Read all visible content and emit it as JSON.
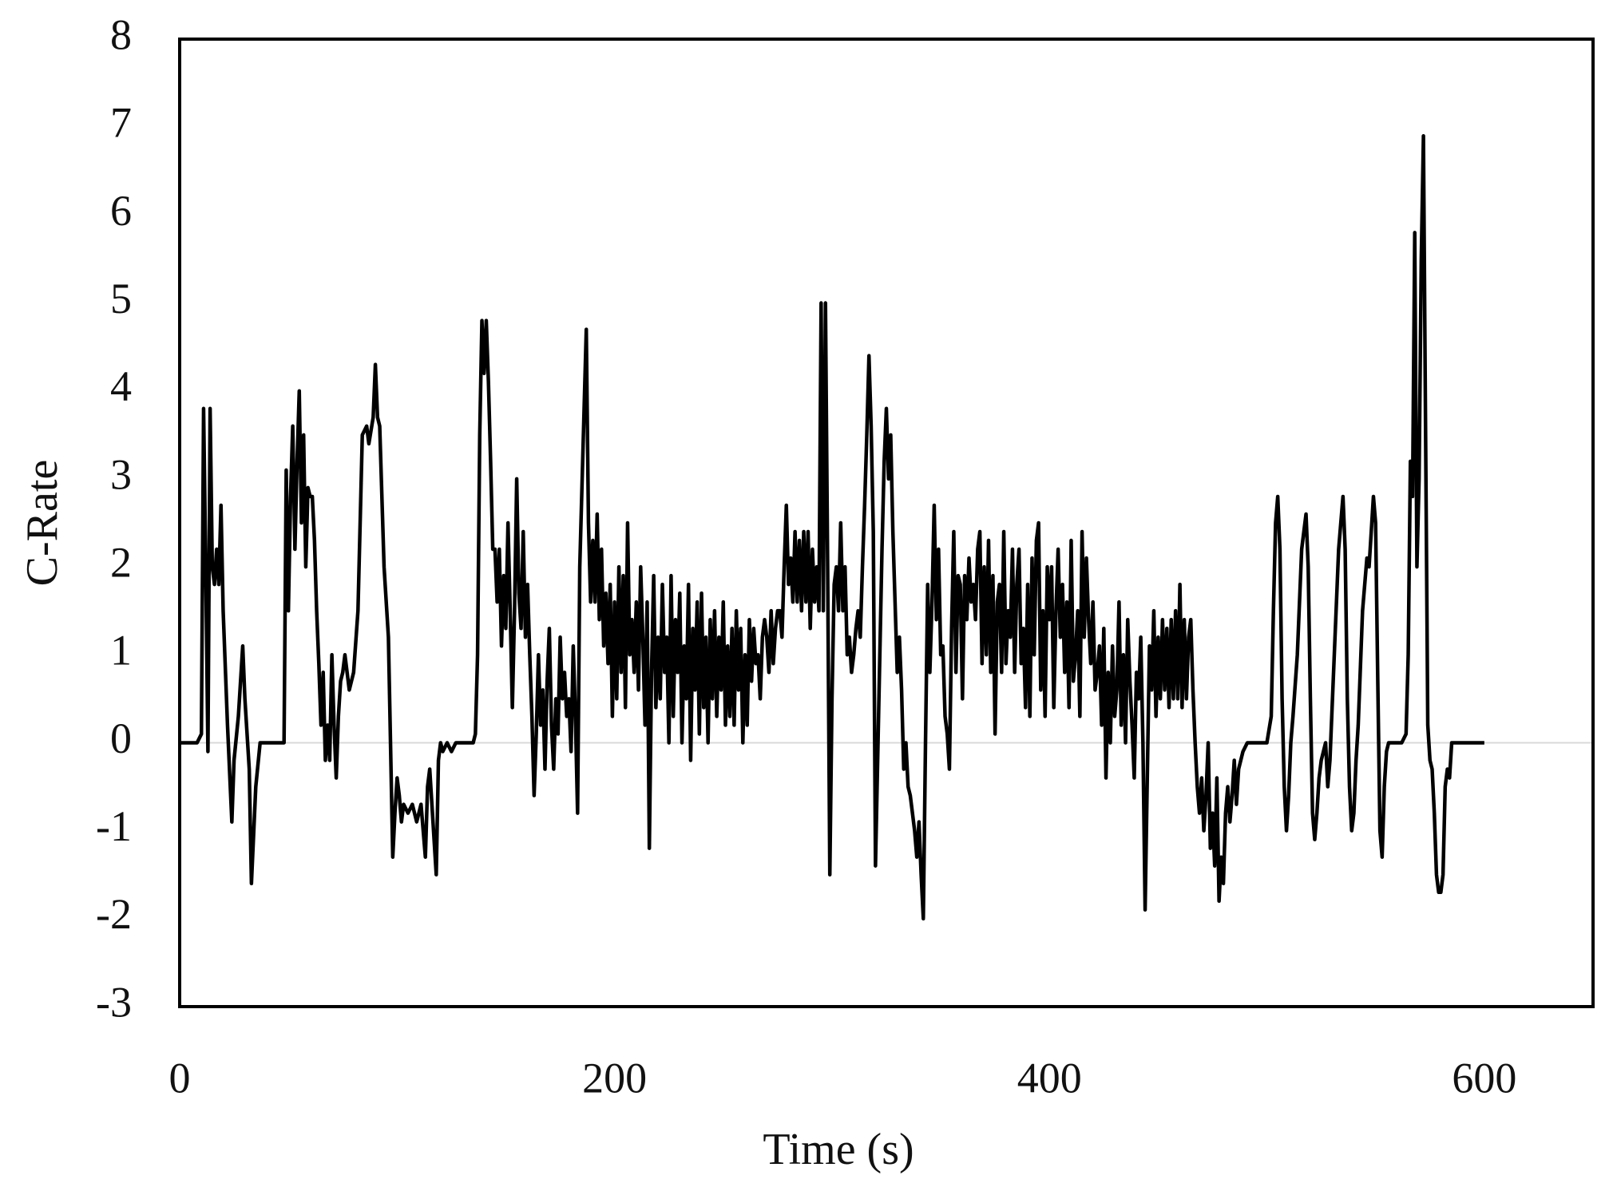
{
  "chart_data": {
    "type": "line",
    "x_label": "Time (s)",
    "y_label": "C-Rate",
    "color": "#000000",
    "xlim": [
      0,
      650
    ],
    "ylim": [
      -3,
      8
    ],
    "xticks": [
      0,
      200,
      400,
      600
    ],
    "yticks": [
      -3,
      -2,
      -1,
      0,
      1,
      2,
      3,
      4,
      5,
      6,
      7,
      8
    ],
    "grid": false,
    "x": [
      0,
      8,
      10,
      11,
      12,
      13,
      14,
      15,
      16,
      17,
      18,
      19,
      20,
      22,
      24,
      25,
      27,
      29,
      30,
      32,
      33,
      35,
      37,
      48,
      49,
      50,
      51,
      52,
      53,
      54,
      55,
      56,
      57,
      58,
      59,
      60,
      61,
      62,
      63,
      64,
      65,
      66,
      67,
      68,
      69,
      70,
      71,
      72,
      73,
      74,
      75,
      76,
      78,
      80,
      82,
      84,
      86,
      87,
      89,
      90,
      91,
      92,
      94,
      96,
      98,
      99,
      100,
      101,
      102,
      103,
      105,
      107,
      109,
      111,
      113,
      114,
      115,
      118,
      119,
      120,
      121,
      123,
      125,
      127,
      135,
      136,
      137,
      138,
      139,
      140,
      141,
      142,
      143,
      144,
      145,
      146,
      147,
      148,
      149,
      150,
      151,
      152,
      153,
      154,
      155,
      156,
      157,
      158,
      159,
      160,
      161,
      162,
      163,
      164,
      165,
      166,
      167,
      168,
      169,
      170,
      171,
      172,
      173,
      174,
      175,
      176,
      177,
      178,
      179,
      180,
      181,
      182,
      183,
      184,
      187,
      188,
      189,
      190,
      191,
      192,
      193,
      194,
      195,
      196,
      197,
      198,
      199,
      200,
      201,
      202,
      203,
      204,
      205,
      206,
      207,
      208,
      209,
      210,
      211,
      212,
      213,
      214,
      215,
      216,
      217,
      218,
      219,
      220,
      221,
      222,
      223,
      224,
      225,
      226,
      227,
      228,
      229,
      230,
      231,
      232,
      233,
      234,
      235,
      236,
      237,
      238,
      239,
      240,
      241,
      242,
      243,
      244,
      245,
      246,
      247,
      248,
      249,
      250,
      251,
      252,
      253,
      254,
      255,
      256,
      257,
      258,
      259,
      260,
      261,
      262,
      263,
      264,
      265,
      266,
      267,
      268,
      269,
      270,
      271,
      272,
      273,
      274,
      275,
      276,
      277,
      278,
      279,
      280,
      281,
      282,
      283,
      284,
      285,
      286,
      287,
      288,
      289,
      290,
      291,
      292,
      293,
      294,
      295,
      296,
      297,
      298,
      299,
      300,
      301,
      302,
      303,
      304,
      305,
      306,
      307,
      308,
      309,
      310,
      311,
      312,
      313,
      314,
      315,
      316,
      317,
      318,
      319,
      320,
      323,
      324,
      325,
      326,
      327,
      328,
      329,
      330,
      331,
      332,
      333,
      334,
      335,
      336,
      337,
      338,
      339,
      340,
      341,
      342,
      343,
      344,
      345,
      346,
      347,
      348,
      349,
      350,
      351,
      352,
      353,
      354,
      355,
      356,
      357,
      358,
      359,
      360,
      361,
      362,
      363,
      364,
      365,
      366,
      367,
      368,
      369,
      370,
      371,
      372,
      373,
      374,
      375,
      376,
      377,
      378,
      379,
      380,
      381,
      382,
      383,
      384,
      385,
      386,
      387,
      388,
      389,
      390,
      391,
      392,
      393,
      394,
      395,
      396,
      397,
      398,
      399,
      400,
      401,
      402,
      403,
      404,
      405,
      406,
      407,
      408,
      409,
      410,
      411,
      412,
      413,
      414,
      415,
      416,
      417,
      418,
      419,
      420,
      421,
      422,
      423,
      424,
      425,
      426,
      427,
      428,
      429,
      430,
      431,
      432,
      433,
      434,
      435,
      436,
      437,
      438,
      439,
      440,
      441,
      442,
      443,
      444,
      446,
      447,
      448,
      449,
      450,
      451,
      452,
      453,
      454,
      455,
      456,
      457,
      458,
      459,
      460,
      461,
      462,
      463,
      464,
      465,
      466,
      467,
      468,
      469,
      470,
      471,
      472,
      473,
      474,
      475,
      476,
      477,
      478,
      479,
      480,
      481,
      482,
      483,
      484,
      485,
      486,
      487,
      489,
      491,
      500,
      502,
      503,
      504,
      505,
      506,
      507,
      508,
      509,
      510,
      511,
      512,
      514,
      516,
      518,
      519,
      520,
      521,
      522,
      523,
      524,
      525,
      527,
      528,
      529,
      531,
      533,
      535,
      536,
      537,
      538,
      539,
      540,
      541,
      542,
      544,
      546,
      547,
      549,
      550,
      551,
      552,
      553,
      554,
      555,
      556,
      562,
      564,
      565,
      566,
      567,
      568,
      569,
      570,
      571,
      572,
      573,
      574,
      575,
      576,
      577,
      578,
      579,
      580,
      581,
      582,
      583,
      584,
      585,
      590,
      600
    ],
    "values": [
      0,
      0,
      0.1,
      3.8,
      2,
      -0.1,
      3.8,
      2,
      1.8,
      2.2,
      1.8,
      2.7,
      1.5,
      0.2,
      -0.9,
      -0.2,
      0.3,
      1.1,
      0.5,
      -0.3,
      -1.6,
      -0.5,
      0,
      0,
      3.1,
      1.5,
      2.8,
      3.6,
      2.2,
      3.2,
      4,
      2.5,
      3.5,
      2,
      2.9,
      2.8,
      2.8,
      2.3,
      1.5,
      0.9,
      0.2,
      0.8,
      -0.2,
      0.2,
      -0.2,
      1,
      0.2,
      -0.4,
      0.3,
      0.7,
      0.8,
      1,
      0.6,
      0.8,
      1.5,
      3.5,
      3.6,
      3.4,
      3.7,
      4.3,
      3.7,
      3.6,
      2,
      1.2,
      -1.3,
      -0.8,
      -0.4,
      -0.6,
      -0.9,
      -0.7,
      -0.8,
      -0.7,
      -0.9,
      -0.7,
      -1.3,
      -0.5,
      -0.3,
      -1.5,
      -0.2,
      0,
      -0.1,
      0,
      -0.1,
      0,
      0,
      0.1,
      1,
      3.5,
      4.8,
      4.2,
      4.8,
      4.1,
      3.2,
      2.2,
      2.2,
      1.6,
      2.2,
      1.1,
      1.9,
      1.3,
      2.5,
      1.5,
      0.4,
      1.5,
      3,
      1.7,
      1.3,
      2.4,
      1.2,
      1.8,
      1,
      0.3,
      -0.6,
      0.1,
      1,
      0.2,
      0.6,
      -0.3,
      0.7,
      1.3,
      0.2,
      -0.3,
      0.5,
      0.1,
      1.2,
      0.5,
      0.8,
      0.3,
      0.5,
      -0.1,
      1.1,
      0.3,
      -0.8,
      2,
      4.7,
      2.5,
      1.6,
      2.3,
      1.6,
      2.6,
      1.4,
      2.2,
      1.1,
      1.7,
      0.9,
      1.8,
      0.3,
      1.6,
      0.5,
      2,
      0.8,
      1.9,
      0.4,
      2.5,
      1,
      1.4,
      0.8,
      1.6,
      0.6,
      2,
      1.2,
      0.2,
      1.6,
      -1.2,
      0.8,
      1.9,
      0.4,
      1.2,
      0.5,
      1.8,
      0.8,
      1.2,
      0,
      1.9,
      0.3,
      1.4,
      0.8,
      1.7,
      0,
      1.1,
      0.5,
      1.8,
      -0.2,
      1.3,
      0.6,
      1.6,
      0.1,
      1.7,
      0.4,
      1.2,
      0,
      1.4,
      0.5,
      1.5,
      0.3,
      1.2,
      0.6,
      1.6,
      0.2,
      1.1,
      0.3,
      1.3,
      0.2,
      1.5,
      0.6,
      1.3,
      0,
      1,
      0.2,
      1.4,
      0.7,
      1.3,
      0.9,
      1,
      0.5,
      1.2,
      1.4,
      1.2,
      0.8,
      1.5,
      0.9,
      1.3,
      1.5,
      1.5,
      1.2,
      2,
      2.7,
      1.8,
      2.1,
      1.6,
      2.4,
      1.6,
      2.3,
      1.5,
      2.4,
      1.6,
      2.4,
      1.3,
      2.2,
      1.6,
      2,
      1.5,
      5,
      1.5,
      5,
      2,
      -1.5,
      0.5,
      1.8,
      2,
      1.5,
      2.5,
      1.5,
      2,
      1,
      1.2,
      0.8,
      1,
      1.3,
      1.5,
      1.2,
      2,
      2.7,
      3.5,
      4.4,
      3.6,
      2.4,
      -1.4,
      2.2,
      3.2,
      3.8,
      3,
      3.5,
      2.4,
      1.6,
      0.8,
      1.2,
      0.6,
      -0.3,
      0,
      -0.5,
      -0.6,
      -0.8,
      -1,
      -1.3,
      -0.9,
      -1.5,
      -2,
      0,
      1.8,
      0.8,
      1.6,
      2.7,
      1.4,
      2.2,
      1,
      1.1,
      0.3,
      0.1,
      -0.3,
      1.3,
      2.4,
      0.8,
      1.9,
      1.8,
      0.5,
      1.9,
      1.4,
      2.1,
      1.6,
      1.8,
      1.4,
      2.2,
      2.4,
      0.9,
      2,
      1,
      2.3,
      0.8,
      1.9,
      0.1,
      1.6,
      1.8,
      0.8,
      2.4,
      0.9,
      1.5,
      1.2,
      2.2,
      0.8,
      1.8,
      2.2,
      0.9,
      1.3,
      0.4,
      1.8,
      0.3,
      2.1,
      1,
      2.3,
      2.5,
      0.6,
      1.5,
      0.3,
      2,
      1.4,
      2,
      0.4,
      1.5,
      2.2,
      1.2,
      1.8,
      0.8,
      1.6,
      0.4,
      2.3,
      0.7,
      1,
      1.5,
      0.3,
      2.4,
      1.2,
      2.1,
      1.4,
      0.9,
      1.6,
      0.6,
      0.8,
      1.1,
      0.2,
      1.3,
      -0.4,
      0.8,
      0,
      1.1,
      0.3,
      0.6,
      1.6,
      0.2,
      1,
      0,
      1.4,
      0.7,
      0.2,
      -0.4,
      0.8,
      0.5,
      1.2,
      0,
      -1.9,
      1.1,
      0.6,
      1.5,
      0.3,
      1.2,
      0.5,
      1.4,
      0.6,
      1.3,
      0.4,
      1.4,
      0.5,
      1.5,
      0.5,
      1.8,
      0.4,
      1.4,
      0.5,
      1.2,
      1.4,
      0.6,
      0,
      -0.5,
      -0.8,
      -0.4,
      -1,
      -0.6,
      0,
      -1.2,
      -0.8,
      -1.4,
      -0.4,
      -1.8,
      -1.3,
      -1.6,
      -0.8,
      -0.5,
      -0.9,
      -0.6,
      -0.2,
      -0.7,
      -0.3,
      -0.1,
      0,
      0,
      0.3,
      1.5,
      2.5,
      2.8,
      2.2,
      0.5,
      -0.5,
      -1,
      -0.6,
      0,
      0.3,
      1,
      2.2,
      2.6,
      2,
      0.5,
      -0.8,
      -1.1,
      -0.8,
      -0.4,
      -0.2,
      0,
      -0.5,
      -0.2,
      1,
      2.2,
      2.8,
      2.2,
      0.5,
      -0.5,
      -1,
      -0.8,
      -0.2,
      0.2,
      1.5,
      2.1,
      2,
      2.8,
      2.5,
      0.7,
      -1,
      -1.3,
      -0.5,
      -0.1,
      0,
      0,
      0.1,
      1,
      3.2,
      2.8,
      5.8,
      2,
      3,
      5.5,
      6.9,
      3.5,
      0.2,
      -0.2,
      -0.3,
      -0.8,
      -1.5,
      -1.7,
      -1.7,
      -1.5,
      -0.5,
      -0.3,
      -0.4,
      0,
      0,
      0
    ]
  }
}
